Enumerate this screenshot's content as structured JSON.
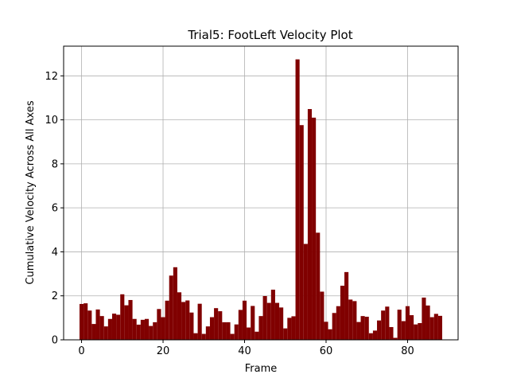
{
  "chart_data": {
    "type": "bar",
    "title": "Trial5: FootLeft Velocity Plot",
    "xlabel": "Frame",
    "ylabel": "Cumulative Velocity Across All Axes",
    "xlim": [
      -4.4,
      92.4
    ],
    "ylim": [
      0,
      13.35
    ],
    "xticks": [
      0,
      20,
      40,
      60,
      80
    ],
    "yticks": [
      0,
      2,
      4,
      6,
      8,
      10,
      12
    ],
    "grid": true,
    "bar_color": "#800000",
    "x": [
      0,
      1,
      2,
      3,
      4,
      5,
      6,
      7,
      8,
      9,
      10,
      11,
      12,
      13,
      14,
      15,
      16,
      17,
      18,
      19,
      20,
      21,
      22,
      23,
      24,
      25,
      26,
      27,
      28,
      29,
      30,
      31,
      32,
      33,
      34,
      35,
      36,
      37,
      38,
      39,
      40,
      41,
      42,
      43,
      44,
      45,
      46,
      47,
      48,
      49,
      50,
      51,
      52,
      53,
      54,
      55,
      56,
      57,
      58,
      59,
      60,
      61,
      62,
      63,
      64,
      65,
      66,
      67,
      68,
      69,
      70,
      71,
      72,
      73,
      74,
      75,
      76,
      77,
      78,
      79,
      80,
      81,
      82,
      83,
      84,
      85,
      86,
      87,
      88
    ],
    "values": [
      1.63,
      1.66,
      1.33,
      0.72,
      1.38,
      1.08,
      0.61,
      0.95,
      1.19,
      1.14,
      2.07,
      1.57,
      1.81,
      0.95,
      0.69,
      0.91,
      0.95,
      0.63,
      0.8,
      1.4,
      1.03,
      1.78,
      2.92,
      3.3,
      2.16,
      1.72,
      1.79,
      1.24,
      0.3,
      1.64,
      0.27,
      0.61,
      1.03,
      1.44,
      1.3,
      0.8,
      0.8,
      0.27,
      0.7,
      1.36,
      1.78,
      0.56,
      1.54,
      0.37,
      1.08,
      1.99,
      1.68,
      2.28,
      1.68,
      1.47,
      0.52,
      1.0,
      1.07,
      12.75,
      9.76,
      4.36,
      10.49,
      10.1,
      4.87,
      2.19,
      0.82,
      0.48,
      1.22,
      1.53,
      2.46,
      3.08,
      1.83,
      1.76,
      0.81,
      1.08,
      1.05,
      0.3,
      0.42,
      0.88,
      1.33,
      1.51,
      0.58,
      0.09,
      1.37,
      0.85,
      1.53,
      1.12,
      0.7,
      0.76,
      1.92,
      1.56,
      1.03,
      1.18,
      1.09
    ]
  }
}
